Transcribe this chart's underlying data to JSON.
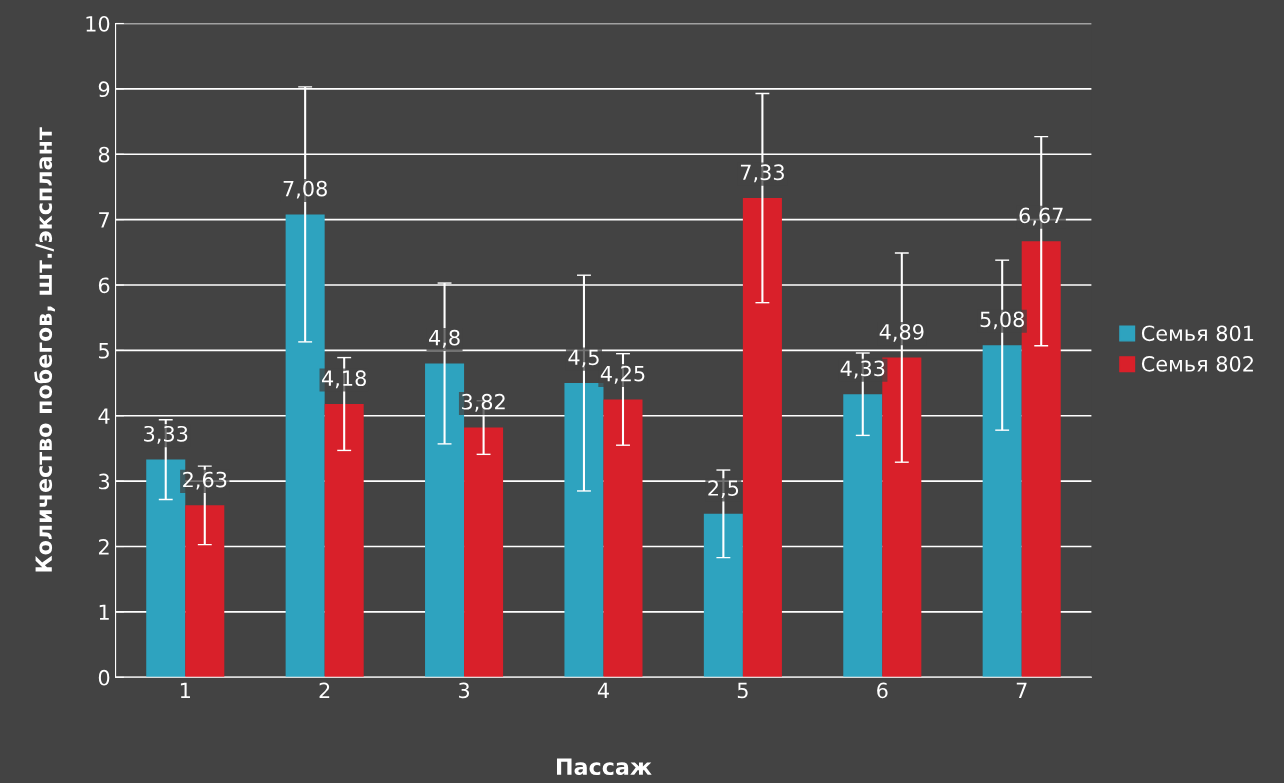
{
  "chart_data": {
    "type": "bar",
    "xlabel": "Пассаж",
    "ylabel": "Количество побегов, шт./эксплант",
    "categories": [
      "1",
      "2",
      "3",
      "4",
      "5",
      "6",
      "7"
    ],
    "series": [
      {
        "name": "Семья 801",
        "color": "#2ea3bf",
        "values": [
          3.33,
          7.08,
          4.8,
          4.5,
          2.5,
          4.33,
          5.08
        ],
        "errors": [
          0.61,
          1.95,
          1.23,
          1.65,
          0.67,
          0.63,
          1.3
        ],
        "value_labels": [
          "3,33",
          "7,08",
          "4,8",
          "4,5",
          "2,5",
          "4,33",
          "5,08"
        ]
      },
      {
        "name": "Семья 802",
        "color": "#d9202a",
        "values": [
          2.63,
          4.18,
          3.82,
          4.25,
          7.33,
          4.89,
          6.67
        ],
        "errors": [
          0.6,
          0.71,
          0.41,
          0.7,
          1.6,
          1.6,
          1.6
        ],
        "value_labels": [
          "2,63",
          "4,18",
          "3,82",
          "4,25",
          "7,33",
          "4,89",
          "6,67"
        ]
      }
    ],
    "ylim": [
      0,
      10
    ],
    "yticks": [
      0,
      1,
      2,
      3,
      4,
      5,
      6,
      7,
      8,
      9,
      10
    ],
    "grid": "y",
    "legend": "right"
  }
}
